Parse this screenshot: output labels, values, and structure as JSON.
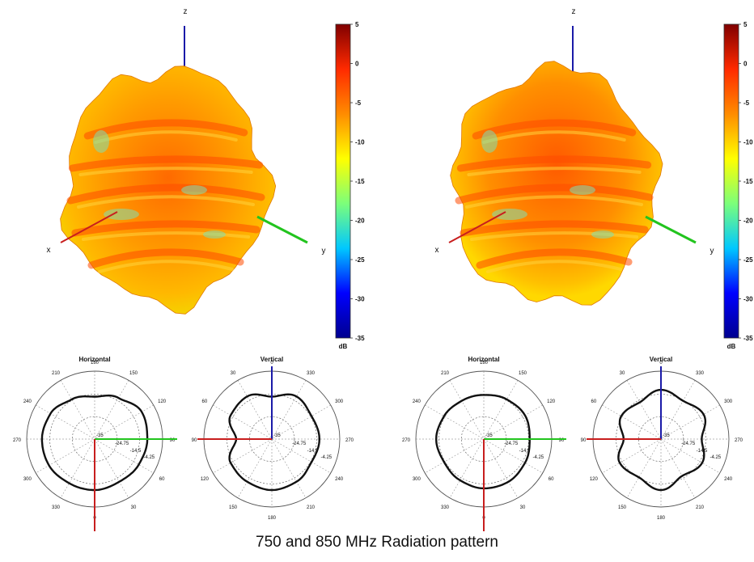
{
  "caption": "750 and 850 MHz Radiation pattern",
  "colorbar": {
    "unit": "dB",
    "ticks": [
      "5",
      "0",
      "-5",
      "-10",
      "-15",
      "-20",
      "-25",
      "-30",
      "-35"
    ],
    "range": [
      -35,
      5
    ],
    "colors": [
      "#00008f",
      "#0000ff",
      "#00c8ff",
      "#7cff7a",
      "#ffff00",
      "#ff8c00",
      "#ff2a00",
      "#800000"
    ]
  },
  "axis_colors": {
    "x": "#c81e1e",
    "y": "#22c41e",
    "z": "#1a1aa8",
    "pattern": "#111111"
  },
  "chart_data": [
    {
      "type": "3d-radiation-pattern",
      "frequency_panel": "750 MHz",
      "axis_labels": {
        "x": "x",
        "y": "y",
        "z": "z"
      },
      "colorbar_unit": "dB",
      "colorbar_ticks": [
        5,
        0,
        -5,
        -10,
        -15,
        -20,
        -25,
        -30,
        -35
      ]
    },
    {
      "type": "polar",
      "title": "Horizontal",
      "angle_labels": [
        "180",
        "150",
        "120",
        "90",
        "60",
        "30",
        "0",
        "330",
        "300",
        "270",
        "240",
        "210"
      ],
      "radial_labels": [
        "-35",
        "-24.75",
        "-14.5",
        "-4.25"
      ],
      "radial_range": [
        -35,
        5
      ],
      "theta_deg": [
        0,
        30,
        60,
        90,
        120,
        150,
        180,
        210,
        240,
        270,
        300,
        330
      ],
      "gain_db": [
        -10,
        -7,
        -3,
        -4,
        -5,
        -6,
        -5,
        -5,
        -4,
        -4,
        -5,
        -8
      ]
    },
    {
      "type": "polar",
      "title": "Vertical",
      "angle_labels": [
        "0",
        "330",
        "300",
        "270",
        "240",
        "210",
        "180",
        "150",
        "120",
        "90",
        "60",
        "30"
      ],
      "radial_labels": [
        "-35",
        "-24.75",
        "-14.5",
        "-4.25"
      ],
      "radial_range": [
        -35,
        5
      ],
      "theta_deg": [
        0,
        30,
        60,
        90,
        120,
        150,
        180,
        210,
        240,
        270,
        300,
        330
      ],
      "gain_db": [
        -10,
        -6,
        -8,
        -7,
        -8,
        -6,
        -5,
        -6,
        -7,
        -14,
        -7,
        -6
      ]
    },
    {
      "type": "3d-radiation-pattern",
      "frequency_panel": "850 MHz",
      "axis_labels": {
        "x": "x",
        "y": "y",
        "z": "z"
      },
      "colorbar_unit": "dB",
      "colorbar_ticks": [
        5,
        0,
        -5,
        -10,
        -15,
        -20,
        -25,
        -30,
        -35
      ]
    },
    {
      "type": "polar",
      "title": "Horizontal",
      "angle_labels": [
        "180",
        "150",
        "120",
        "90",
        "60",
        "30",
        "0",
        "330",
        "300",
        "270",
        "240",
        "210"
      ],
      "radial_labels": [
        "-35",
        "-24.75",
        "-14.5",
        "-4.25"
      ],
      "radial_range": [
        -35,
        5
      ],
      "theta_deg": [
        0,
        30,
        60,
        90,
        120,
        150,
        180,
        210,
        240,
        270,
        300,
        330
      ],
      "gain_db": [
        -9,
        -8,
        -7,
        -8,
        -7,
        -6,
        -6,
        -7,
        -8,
        -7,
        -8,
        -9
      ]
    },
    {
      "type": "polar",
      "title": "Vertical",
      "angle_labels": [
        "0",
        "330",
        "300",
        "270",
        "240",
        "210",
        "180",
        "150",
        "120",
        "90",
        "60",
        "30"
      ],
      "radial_labels": [
        "-35",
        "-24.75",
        "-14.5",
        "-4.25"
      ],
      "radial_range": [
        -35,
        5
      ],
      "theta_deg": [
        0,
        30,
        60,
        90,
        120,
        150,
        180,
        210,
        240,
        270,
        300,
        330
      ],
      "gain_db": [
        -6,
        -9,
        -6,
        -11,
        -7,
        -10,
        -5,
        -9,
        -7,
        -13,
        -8,
        -10
      ]
    }
  ]
}
